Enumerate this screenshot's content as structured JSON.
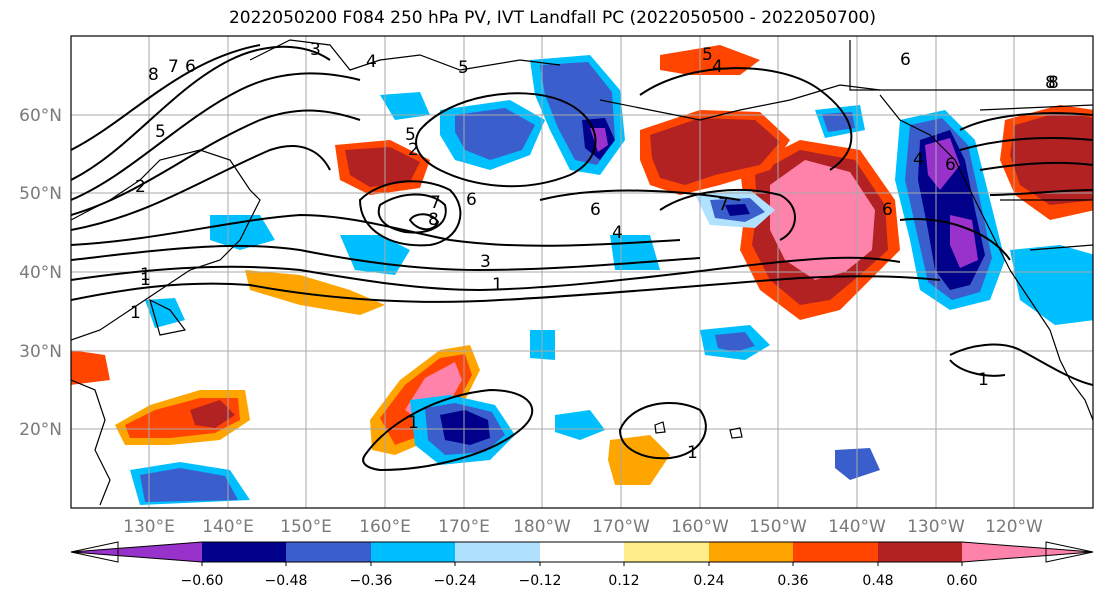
{
  "title": "2022050200 F084 250 hPa PV, IVT Landfall PC (2022050500 - 2022050700)",
  "lat_labels": [
    "60°N",
    "50°N",
    "40°N",
    "30°N",
    "20°N"
  ],
  "lon_labels": [
    "130°E",
    "140°E",
    "150°E",
    "160°E",
    "170°E",
    "180°W",
    "170°W",
    "160°W",
    "150°W",
    "140°W",
    "130°W",
    "120°W"
  ],
  "colorbar": {
    "ticks": [
      "−0.60",
      "−0.48",
      "−0.36",
      "−0.24",
      "−0.12",
      "0.12",
      "0.24",
      "0.36",
      "0.48",
      "0.60"
    ],
    "colors": [
      "#9932CC",
      "#00008B",
      "#3A5FCD",
      "#00BFFF",
      "#B0E2FF",
      "#FFFFFF",
      "#FFEC8B",
      "#FFA500",
      "#FF4500",
      "#B22222",
      "#FF82AB"
    ]
  },
  "contour_labels": [
    "3",
    "4",
    "5",
    "5",
    "4",
    "6",
    "8",
    "8",
    "7",
    "6",
    "5",
    "5",
    "2",
    "1",
    "1",
    "2",
    "7",
    "6",
    "8",
    "6",
    "7",
    "6",
    "4",
    "3",
    "1",
    "1",
    "1",
    "1",
    "6",
    "4",
    "8",
    "1"
  ]
}
